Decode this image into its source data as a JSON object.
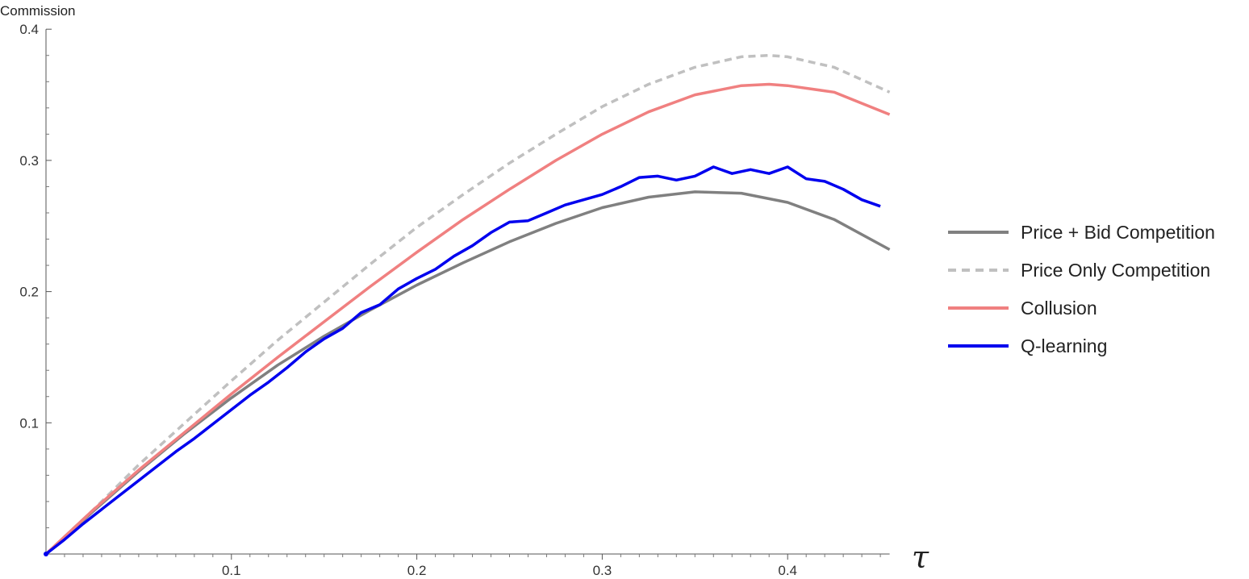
{
  "chart_data": {
    "type": "line",
    "xlabel": "τ",
    "ylabel": "Commission",
    "xlim": [
      0,
      0.455
    ],
    "ylim": [
      0,
      0.4
    ],
    "xticks": [
      0.1,
      0.2,
      0.3,
      0.4
    ],
    "xtick_labels": [
      "0.1",
      "0.2",
      "0.3",
      "0.4"
    ],
    "yticks": [
      0.1,
      0.2,
      0.3,
      0.4
    ],
    "ytick_labels": [
      "0.1",
      "0.2",
      "0.3",
      "0.4"
    ],
    "grid": false,
    "legend_position": "right",
    "series": [
      {
        "name": "Price + Bid Competition",
        "color": "#808080",
        "dash": "solid",
        "x": [
          0,
          0.025,
          0.05,
          0.075,
          0.1,
          0.125,
          0.15,
          0.175,
          0.2,
          0.225,
          0.25,
          0.275,
          0.3,
          0.325,
          0.35,
          0.375,
          0.4,
          0.425,
          0.455
        ],
        "values": [
          0,
          0.032,
          0.063,
          0.092,
          0.119,
          0.144,
          0.166,
          0.186,
          0.205,
          0.222,
          0.238,
          0.252,
          0.264,
          0.272,
          0.276,
          0.275,
          0.268,
          0.255,
          0.232
        ]
      },
      {
        "name": "Price Only Competition",
        "color": "#c0c0c0",
        "dash": "dashed",
        "x": [
          0,
          0.025,
          0.05,
          0.075,
          0.1,
          0.125,
          0.15,
          0.175,
          0.2,
          0.225,
          0.25,
          0.275,
          0.3,
          0.325,
          0.35,
          0.375,
          0.39,
          0.4,
          0.425,
          0.455
        ],
        "values": [
          0,
          0.033,
          0.068,
          0.1,
          0.132,
          0.163,
          0.192,
          0.221,
          0.249,
          0.274,
          0.298,
          0.32,
          0.341,
          0.358,
          0.371,
          0.379,
          0.38,
          0.379,
          0.371,
          0.352
        ]
      },
      {
        "name": "Collusion",
        "color": "#f08080",
        "dash": "solid",
        "x": [
          0,
          0.025,
          0.05,
          0.075,
          0.1,
          0.125,
          0.15,
          0.175,
          0.2,
          0.225,
          0.25,
          0.275,
          0.3,
          0.325,
          0.35,
          0.375,
          0.39,
          0.4,
          0.425,
          0.455
        ],
        "values": [
          0,
          0.033,
          0.064,
          0.093,
          0.122,
          0.15,
          0.177,
          0.204,
          0.23,
          0.255,
          0.278,
          0.3,
          0.32,
          0.337,
          0.35,
          0.357,
          0.358,
          0.357,
          0.352,
          0.335
        ]
      },
      {
        "name": "Q-learning",
        "color": "#0000ee",
        "dash": "solid",
        "x": [
          0,
          0.01,
          0.02,
          0.03,
          0.04,
          0.05,
          0.06,
          0.07,
          0.08,
          0.09,
          0.1,
          0.11,
          0.12,
          0.13,
          0.14,
          0.15,
          0.16,
          0.17,
          0.18,
          0.19,
          0.2,
          0.21,
          0.22,
          0.23,
          0.24,
          0.25,
          0.26,
          0.27,
          0.28,
          0.29,
          0.3,
          0.31,
          0.32,
          0.33,
          0.34,
          0.35,
          0.36,
          0.37,
          0.38,
          0.39,
          0.4,
          0.41,
          0.42,
          0.43,
          0.44,
          0.45
        ],
        "values": [
          0,
          0.011,
          0.023,
          0.034,
          0.045,
          0.056,
          0.067,
          0.078,
          0.088,
          0.099,
          0.11,
          0.121,
          0.131,
          0.142,
          0.154,
          0.164,
          0.172,
          0.184,
          0.19,
          0.202,
          0.21,
          0.217,
          0.227,
          0.235,
          0.245,
          0.253,
          0.254,
          0.26,
          0.266,
          0.27,
          0.274,
          0.28,
          0.287,
          0.288,
          0.285,
          0.288,
          0.295,
          0.29,
          0.293,
          0.29,
          0.295,
          0.286,
          0.284,
          0.278,
          0.27,
          0.265
        ]
      }
    ]
  }
}
